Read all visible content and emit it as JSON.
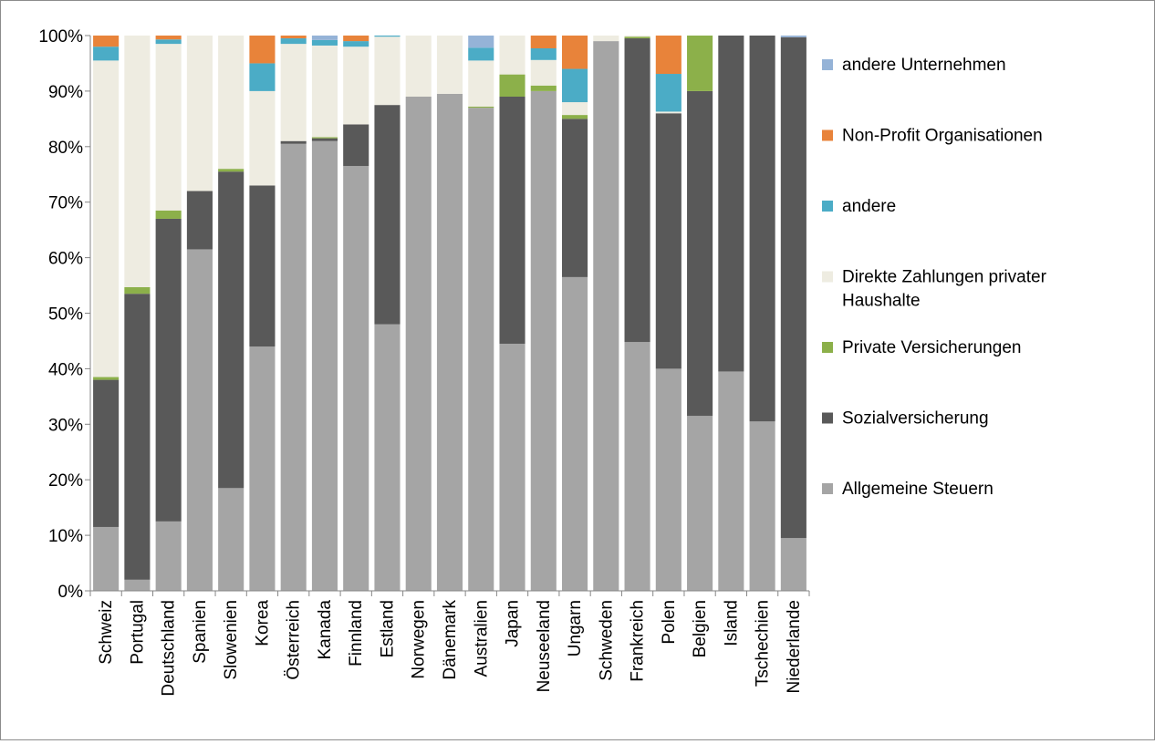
{
  "chart_data": {
    "type": "bar",
    "stacked": true,
    "title": "",
    "xlabel": "",
    "ylabel": "",
    "ylim": [
      0,
      100
    ],
    "y_ticks": [
      "0%",
      "10%",
      "20%",
      "30%",
      "40%",
      "50%",
      "60%",
      "70%",
      "80%",
      "90%",
      "100%"
    ],
    "categories": [
      "Schweiz",
      "Portugal",
      "Deutschland",
      "Spanien",
      "Slowenien",
      "Korea",
      "Österreich",
      "Kanada",
      "Finnland",
      "Estland",
      "Norwegen",
      "Dänemark",
      "Australien",
      "Japan",
      "Neuseeland",
      "Ungarn",
      "Schweden",
      "Frankreich",
      "Polen",
      "Belgien",
      "Island",
      "Tschechien",
      "Niederlande"
    ],
    "legend_position": "right",
    "grid": false,
    "series": [
      {
        "name": "Allgemeine Steuern",
        "color": "#a5a5a5",
        "values": [
          11.5,
          2,
          12.5,
          61.5,
          18.5,
          44,
          80.5,
          81,
          76.5,
          48,
          89,
          89.5,
          87,
          44.5,
          90,
          56.5,
          99,
          44.8,
          40,
          31.5,
          39.5,
          30.5,
          9.5
        ]
      },
      {
        "name": "Sozialversicherung",
        "color": "#595959",
        "values": [
          26.5,
          51.5,
          54.5,
          10.5,
          57,
          29,
          0.5,
          0.5,
          7.5,
          39.5,
          0,
          0,
          0,
          44.5,
          0,
          28.5,
          0,
          54.7,
          46,
          58.5,
          60.5,
          69.5,
          90.2
        ]
      },
      {
        "name": "Private Versicherungen",
        "color": "#8cb04a",
        "values": [
          0.5,
          1.2,
          1.5,
          0,
          0.5,
          0,
          0,
          0.2,
          0,
          0,
          0,
          0,
          0.2,
          4,
          1,
          0.7,
          0,
          0.3,
          0,
          10,
          0,
          0,
          0
        ]
      },
      {
        "name": "Direkte Zahlungen privater Haushalte",
        "color": "#eeece1",
        "values": [
          57,
          45.3,
          30,
          28,
          24,
          17,
          17.5,
          16.5,
          14,
          12.3,
          11,
          10.5,
          8.3,
          7.5,
          4.6,
          2.3,
          1,
          0.2,
          0.3,
          0,
          0,
          0,
          0
        ]
      },
      {
        "name": "andere",
        "color": "#4bacc6",
        "values": [
          2.5,
          0,
          0.8,
          0,
          0,
          5,
          1,
          1,
          1,
          0.2,
          0,
          0,
          2.3,
          0,
          2.1,
          6,
          0,
          0,
          6.8,
          0,
          0,
          0,
          0
        ]
      },
      {
        "name": "Non-Profit Organisationen",
        "color": "#e8833a",
        "values": [
          2,
          0,
          0.7,
          0,
          0,
          5,
          1,
          0,
          1,
          0,
          0,
          0,
          0,
          0,
          2.3,
          6,
          0,
          0,
          6.9,
          0,
          0,
          0,
          0
        ]
      },
      {
        "name": "andere Unternehmen",
        "color": "#95b3d7",
        "values": [
          0,
          0,
          0,
          0,
          0,
          0,
          0,
          0.8,
          0,
          0,
          0,
          0,
          2.2,
          0,
          0,
          0,
          0,
          0,
          0,
          0,
          0,
          0,
          0.3
        ]
      }
    ]
  }
}
